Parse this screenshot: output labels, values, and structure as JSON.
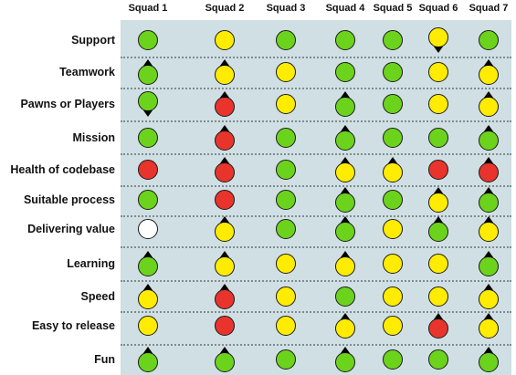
{
  "squads": [
    "Squad 1",
    "Squad 2",
    "Squad 3",
    "Squad 4",
    "Squad 5",
    "Squad 6",
    "Squad 7"
  ],
  "status_colors": {
    "green": "#6cd31c",
    "yellow": "#ffec00",
    "red": "#e8342c",
    "white": "#ffffff"
  },
  "rows": [
    {
      "label": "Support",
      "cells": [
        {
          "status": "green",
          "trend": ""
        },
        {
          "status": "yellow",
          "trend": ""
        },
        {
          "status": "green",
          "trend": ""
        },
        {
          "status": "green",
          "trend": ""
        },
        {
          "status": "green",
          "trend": ""
        },
        {
          "status": "yellow",
          "trend": "down"
        },
        {
          "status": "green",
          "trend": ""
        }
      ]
    },
    {
      "label": "Teamwork",
      "cells": [
        {
          "status": "green",
          "trend": "up"
        },
        {
          "status": "yellow",
          "trend": "up"
        },
        {
          "status": "yellow",
          "trend": ""
        },
        {
          "status": "green",
          "trend": ""
        },
        {
          "status": "green",
          "trend": ""
        },
        {
          "status": "yellow",
          "trend": ""
        },
        {
          "status": "yellow",
          "trend": "up"
        }
      ]
    },
    {
      "label": "Pawns or Players",
      "cells": [
        {
          "status": "green",
          "trend": "down"
        },
        {
          "status": "red",
          "trend": "up"
        },
        {
          "status": "yellow",
          "trend": ""
        },
        {
          "status": "green",
          "trend": "up"
        },
        {
          "status": "green",
          "trend": ""
        },
        {
          "status": "yellow",
          "trend": ""
        },
        {
          "status": "yellow",
          "trend": "up"
        }
      ]
    },
    {
      "label": "Mission",
      "cells": [
        {
          "status": "green",
          "trend": ""
        },
        {
          "status": "red",
          "trend": "up"
        },
        {
          "status": "green",
          "trend": ""
        },
        {
          "status": "green",
          "trend": "up"
        },
        {
          "status": "green",
          "trend": ""
        },
        {
          "status": "green",
          "trend": ""
        },
        {
          "status": "green",
          "trend": "up"
        }
      ]
    },
    {
      "label": "Health of codebase",
      "cells": [
        {
          "status": "red",
          "trend": ""
        },
        {
          "status": "red",
          "trend": "up"
        },
        {
          "status": "green",
          "trend": ""
        },
        {
          "status": "yellow",
          "trend": "up"
        },
        {
          "status": "yellow",
          "trend": "up"
        },
        {
          "status": "red",
          "trend": ""
        },
        {
          "status": "red",
          "trend": "up"
        }
      ]
    },
    {
      "label": "Suitable process",
      "cells": [
        {
          "status": "green",
          "trend": ""
        },
        {
          "status": "red",
          "trend": ""
        },
        {
          "status": "green",
          "trend": ""
        },
        {
          "status": "green",
          "trend": "up"
        },
        {
          "status": "green",
          "trend": ""
        },
        {
          "status": "yellow",
          "trend": "up"
        },
        {
          "status": "green",
          "trend": "up"
        }
      ]
    },
    {
      "label": "Delivering value",
      "cells": [
        {
          "status": "white",
          "trend": ""
        },
        {
          "status": "yellow",
          "trend": "up"
        },
        {
          "status": "green",
          "trend": ""
        },
        {
          "status": "green",
          "trend": "up"
        },
        {
          "status": "yellow",
          "trend": ""
        },
        {
          "status": "green",
          "trend": "up"
        },
        {
          "status": "yellow",
          "trend": "up"
        }
      ]
    },
    {
      "label": "Learning",
      "cells": [
        {
          "status": "green",
          "trend": "up"
        },
        {
          "status": "yellow",
          "trend": "up"
        },
        {
          "status": "yellow",
          "trend": ""
        },
        {
          "status": "yellow",
          "trend": "up"
        },
        {
          "status": "yellow",
          "trend": ""
        },
        {
          "status": "yellow",
          "trend": ""
        },
        {
          "status": "green",
          "trend": "up"
        }
      ]
    },
    {
      "label": "Speed",
      "cells": [
        {
          "status": "yellow",
          "trend": "up"
        },
        {
          "status": "red",
          "trend": "up"
        },
        {
          "status": "yellow",
          "trend": ""
        },
        {
          "status": "green",
          "trend": ""
        },
        {
          "status": "yellow",
          "trend": ""
        },
        {
          "status": "yellow",
          "trend": ""
        },
        {
          "status": "yellow",
          "trend": "up"
        }
      ]
    },
    {
      "label": "Easy to release",
      "cells": [
        {
          "status": "yellow",
          "trend": ""
        },
        {
          "status": "red",
          "trend": ""
        },
        {
          "status": "yellow",
          "trend": ""
        },
        {
          "status": "yellow",
          "trend": "up"
        },
        {
          "status": "yellow",
          "trend": ""
        },
        {
          "status": "red",
          "trend": "up"
        },
        {
          "status": "yellow",
          "trend": "up"
        }
      ]
    },
    {
      "label": "Fun",
      "cells": [
        {
          "status": "green",
          "trend": "up"
        },
        {
          "status": "green",
          "trend": "up"
        },
        {
          "status": "green",
          "trend": ""
        },
        {
          "status": "green",
          "trend": "up"
        },
        {
          "status": "green",
          "trend": ""
        },
        {
          "status": "green",
          "trend": ""
        },
        {
          "status": "green",
          "trend": "up"
        }
      ]
    }
  ]
}
